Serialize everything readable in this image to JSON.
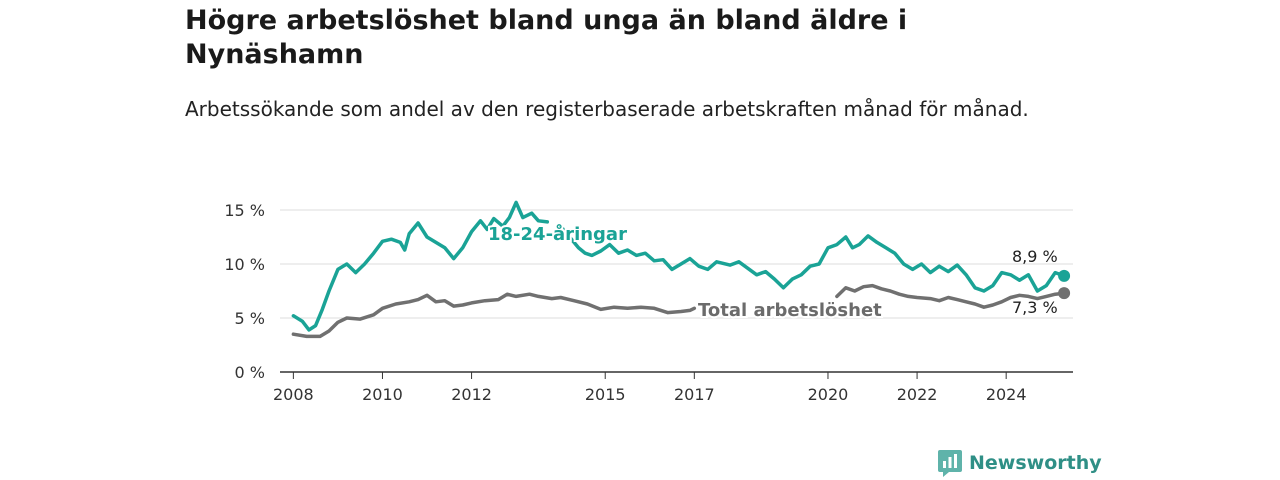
{
  "header": {
    "title": "Högre arbetslöshet bland unga än bland äldre i Nynäshamn",
    "subtitle": "Arbetssökande som andel av den registerbaserade arbetskraften månad för månad."
  },
  "brand": {
    "name": "Newsworthy"
  },
  "colors": {
    "youth": "#1aa396",
    "total": "#707070",
    "grid": "#dddddd",
    "axis": "#333333",
    "brand": "#2f8f86"
  },
  "chart_data": {
    "type": "line",
    "xlim": [
      2007.7,
      2025.5
    ],
    "ylim": [
      0,
      15
    ],
    "x_ticks": [
      2008,
      2010,
      2012,
      2015,
      2017,
      2020,
      2022,
      2024
    ],
    "y_ticks": [
      {
        "value": 0,
        "label": "0 %"
      },
      {
        "value": 5,
        "label": "5 %"
      },
      {
        "value": 10,
        "label": "10 %"
      },
      {
        "value": 15,
        "label": "15 %"
      }
    ],
    "grid": true,
    "series": [
      {
        "name": "18-24-åringar",
        "end_label": "8,9 %",
        "points": [
          [
            2008.0,
            5.2
          ],
          [
            2008.2,
            4.7
          ],
          [
            2008.35,
            3.9
          ],
          [
            2008.5,
            4.3
          ],
          [
            2008.65,
            5.8
          ],
          [
            2008.8,
            7.5
          ],
          [
            2009.0,
            9.5
          ],
          [
            2009.2,
            10.0
          ],
          [
            2009.4,
            9.2
          ],
          [
            2009.6,
            10.0
          ],
          [
            2009.8,
            11.0
          ],
          [
            2010.0,
            12.1
          ],
          [
            2010.2,
            12.3
          ],
          [
            2010.4,
            12.0
          ],
          [
            2010.5,
            11.3
          ],
          [
            2010.6,
            12.8
          ],
          [
            2010.8,
            13.8
          ],
          [
            2011.0,
            12.5
          ],
          [
            2011.2,
            12.0
          ],
          [
            2011.4,
            11.5
          ],
          [
            2011.6,
            10.5
          ],
          [
            2011.8,
            11.5
          ],
          [
            2012.0,
            13.0
          ],
          [
            2012.2,
            14.0
          ],
          [
            2012.35,
            13.2
          ],
          [
            2012.5,
            14.2
          ],
          [
            2012.7,
            13.5
          ],
          [
            2012.85,
            14.3
          ],
          [
            2013.0,
            15.7
          ],
          [
            2013.15,
            14.3
          ],
          [
            2013.35,
            14.7
          ],
          [
            2013.5,
            14.0
          ],
          [
            2013.7,
            13.9
          ],
          null,
          [
            2014.0,
            13.5
          ],
          [
            2014.2,
            12.5
          ],
          [
            2014.4,
            11.5
          ],
          [
            2014.55,
            11.0
          ],
          [
            2014.7,
            10.8
          ],
          [
            2014.9,
            11.2
          ],
          [
            2015.1,
            11.8
          ],
          [
            2015.3,
            11.0
          ],
          [
            2015.5,
            11.3
          ],
          [
            2015.7,
            10.8
          ],
          [
            2015.9,
            11.0
          ],
          [
            2016.1,
            10.3
          ],
          [
            2016.3,
            10.4
          ],
          [
            2016.5,
            9.5
          ],
          [
            2016.7,
            10.0
          ],
          [
            2016.9,
            10.5
          ],
          [
            2017.1,
            9.8
          ],
          [
            2017.3,
            9.5
          ],
          [
            2017.5,
            10.2
          ],
          [
            2017.8,
            9.9
          ],
          [
            2018.0,
            10.2
          ],
          [
            2018.2,
            9.6
          ],
          [
            2018.4,
            9.0
          ],
          [
            2018.6,
            9.3
          ],
          [
            2018.8,
            8.6
          ],
          [
            2019.0,
            7.8
          ],
          [
            2019.2,
            8.6
          ],
          [
            2019.4,
            9.0
          ],
          [
            2019.6,
            9.8
          ],
          [
            2019.8,
            10.0
          ],
          [
            2020.0,
            11.5
          ],
          [
            2020.2,
            11.8
          ],
          [
            2020.4,
            12.5
          ],
          [
            2020.55,
            11.5
          ],
          [
            2020.7,
            11.8
          ],
          [
            2020.9,
            12.6
          ],
          [
            2021.1,
            12.0
          ],
          [
            2021.3,
            11.5
          ],
          [
            2021.5,
            11.0
          ],
          [
            2021.7,
            10.0
          ],
          [
            2021.9,
            9.5
          ],
          [
            2022.1,
            10.0
          ],
          [
            2022.3,
            9.2
          ],
          [
            2022.5,
            9.8
          ],
          [
            2022.7,
            9.3
          ],
          [
            2022.9,
            9.9
          ],
          [
            2023.1,
            9.0
          ],
          [
            2023.3,
            7.8
          ],
          [
            2023.5,
            7.5
          ],
          [
            2023.7,
            8.0
          ],
          [
            2023.9,
            9.2
          ],
          [
            2024.1,
            9.0
          ],
          [
            2024.3,
            8.5
          ],
          [
            2024.5,
            9.0
          ],
          [
            2024.7,
            7.5
          ],
          [
            2024.9,
            8.0
          ],
          [
            2025.1,
            9.2
          ],
          [
            2025.3,
            8.9
          ]
        ]
      },
      {
        "name": "Total arbetslöshet",
        "end_label": "7,3 %",
        "points": [
          [
            2008.0,
            3.5
          ],
          [
            2008.3,
            3.3
          ],
          [
            2008.6,
            3.3
          ],
          [
            2008.8,
            3.8
          ],
          [
            2009.0,
            4.6
          ],
          [
            2009.2,
            5.0
          ],
          [
            2009.5,
            4.9
          ],
          [
            2009.8,
            5.3
          ],
          [
            2010.0,
            5.9
          ],
          [
            2010.3,
            6.3
          ],
          [
            2010.6,
            6.5
          ],
          [
            2010.8,
            6.7
          ],
          [
            2011.0,
            7.1
          ],
          [
            2011.2,
            6.5
          ],
          [
            2011.4,
            6.6
          ],
          [
            2011.6,
            6.1
          ],
          [
            2011.8,
            6.2
          ],
          [
            2012.0,
            6.4
          ],
          [
            2012.3,
            6.6
          ],
          [
            2012.6,
            6.7
          ],
          [
            2012.8,
            7.2
          ],
          [
            2013.0,
            7.0
          ],
          [
            2013.3,
            7.2
          ],
          [
            2013.5,
            7.0
          ],
          [
            2013.8,
            6.8
          ],
          [
            2014.0,
            6.9
          ],
          [
            2014.3,
            6.6
          ],
          [
            2014.6,
            6.3
          ],
          [
            2014.9,
            5.8
          ],
          [
            2015.2,
            6.0
          ],
          [
            2015.5,
            5.9
          ],
          [
            2015.8,
            6.0
          ],
          [
            2016.1,
            5.9
          ],
          [
            2016.4,
            5.5
          ],
          [
            2016.7,
            5.6
          ],
          [
            2016.9,
            5.7
          ],
          [
            2017.0,
            5.9
          ],
          null,
          [
            2020.2,
            7.0
          ],
          [
            2020.4,
            7.8
          ],
          [
            2020.6,
            7.5
          ],
          [
            2020.8,
            7.9
          ],
          [
            2021.0,
            8.0
          ],
          [
            2021.2,
            7.7
          ],
          [
            2021.4,
            7.5
          ],
          [
            2021.6,
            7.2
          ],
          [
            2021.8,
            7.0
          ],
          [
            2022.0,
            6.9
          ],
          [
            2022.3,
            6.8
          ],
          [
            2022.5,
            6.6
          ],
          [
            2022.7,
            6.9
          ],
          [
            2022.9,
            6.7
          ],
          [
            2023.1,
            6.5
          ],
          [
            2023.3,
            6.3
          ],
          [
            2023.5,
            6.0
          ],
          [
            2023.7,
            6.2
          ],
          [
            2023.9,
            6.5
          ],
          [
            2024.1,
            6.9
          ],
          [
            2024.3,
            7.1
          ],
          [
            2024.5,
            7.0
          ],
          [
            2024.7,
            6.8
          ],
          [
            2024.9,
            7.0
          ],
          [
            2025.1,
            7.2
          ],
          [
            2025.3,
            7.3
          ]
        ]
      }
    ],
    "annotations": [
      "18-24-åringar",
      "Total arbetslöshet"
    ]
  }
}
